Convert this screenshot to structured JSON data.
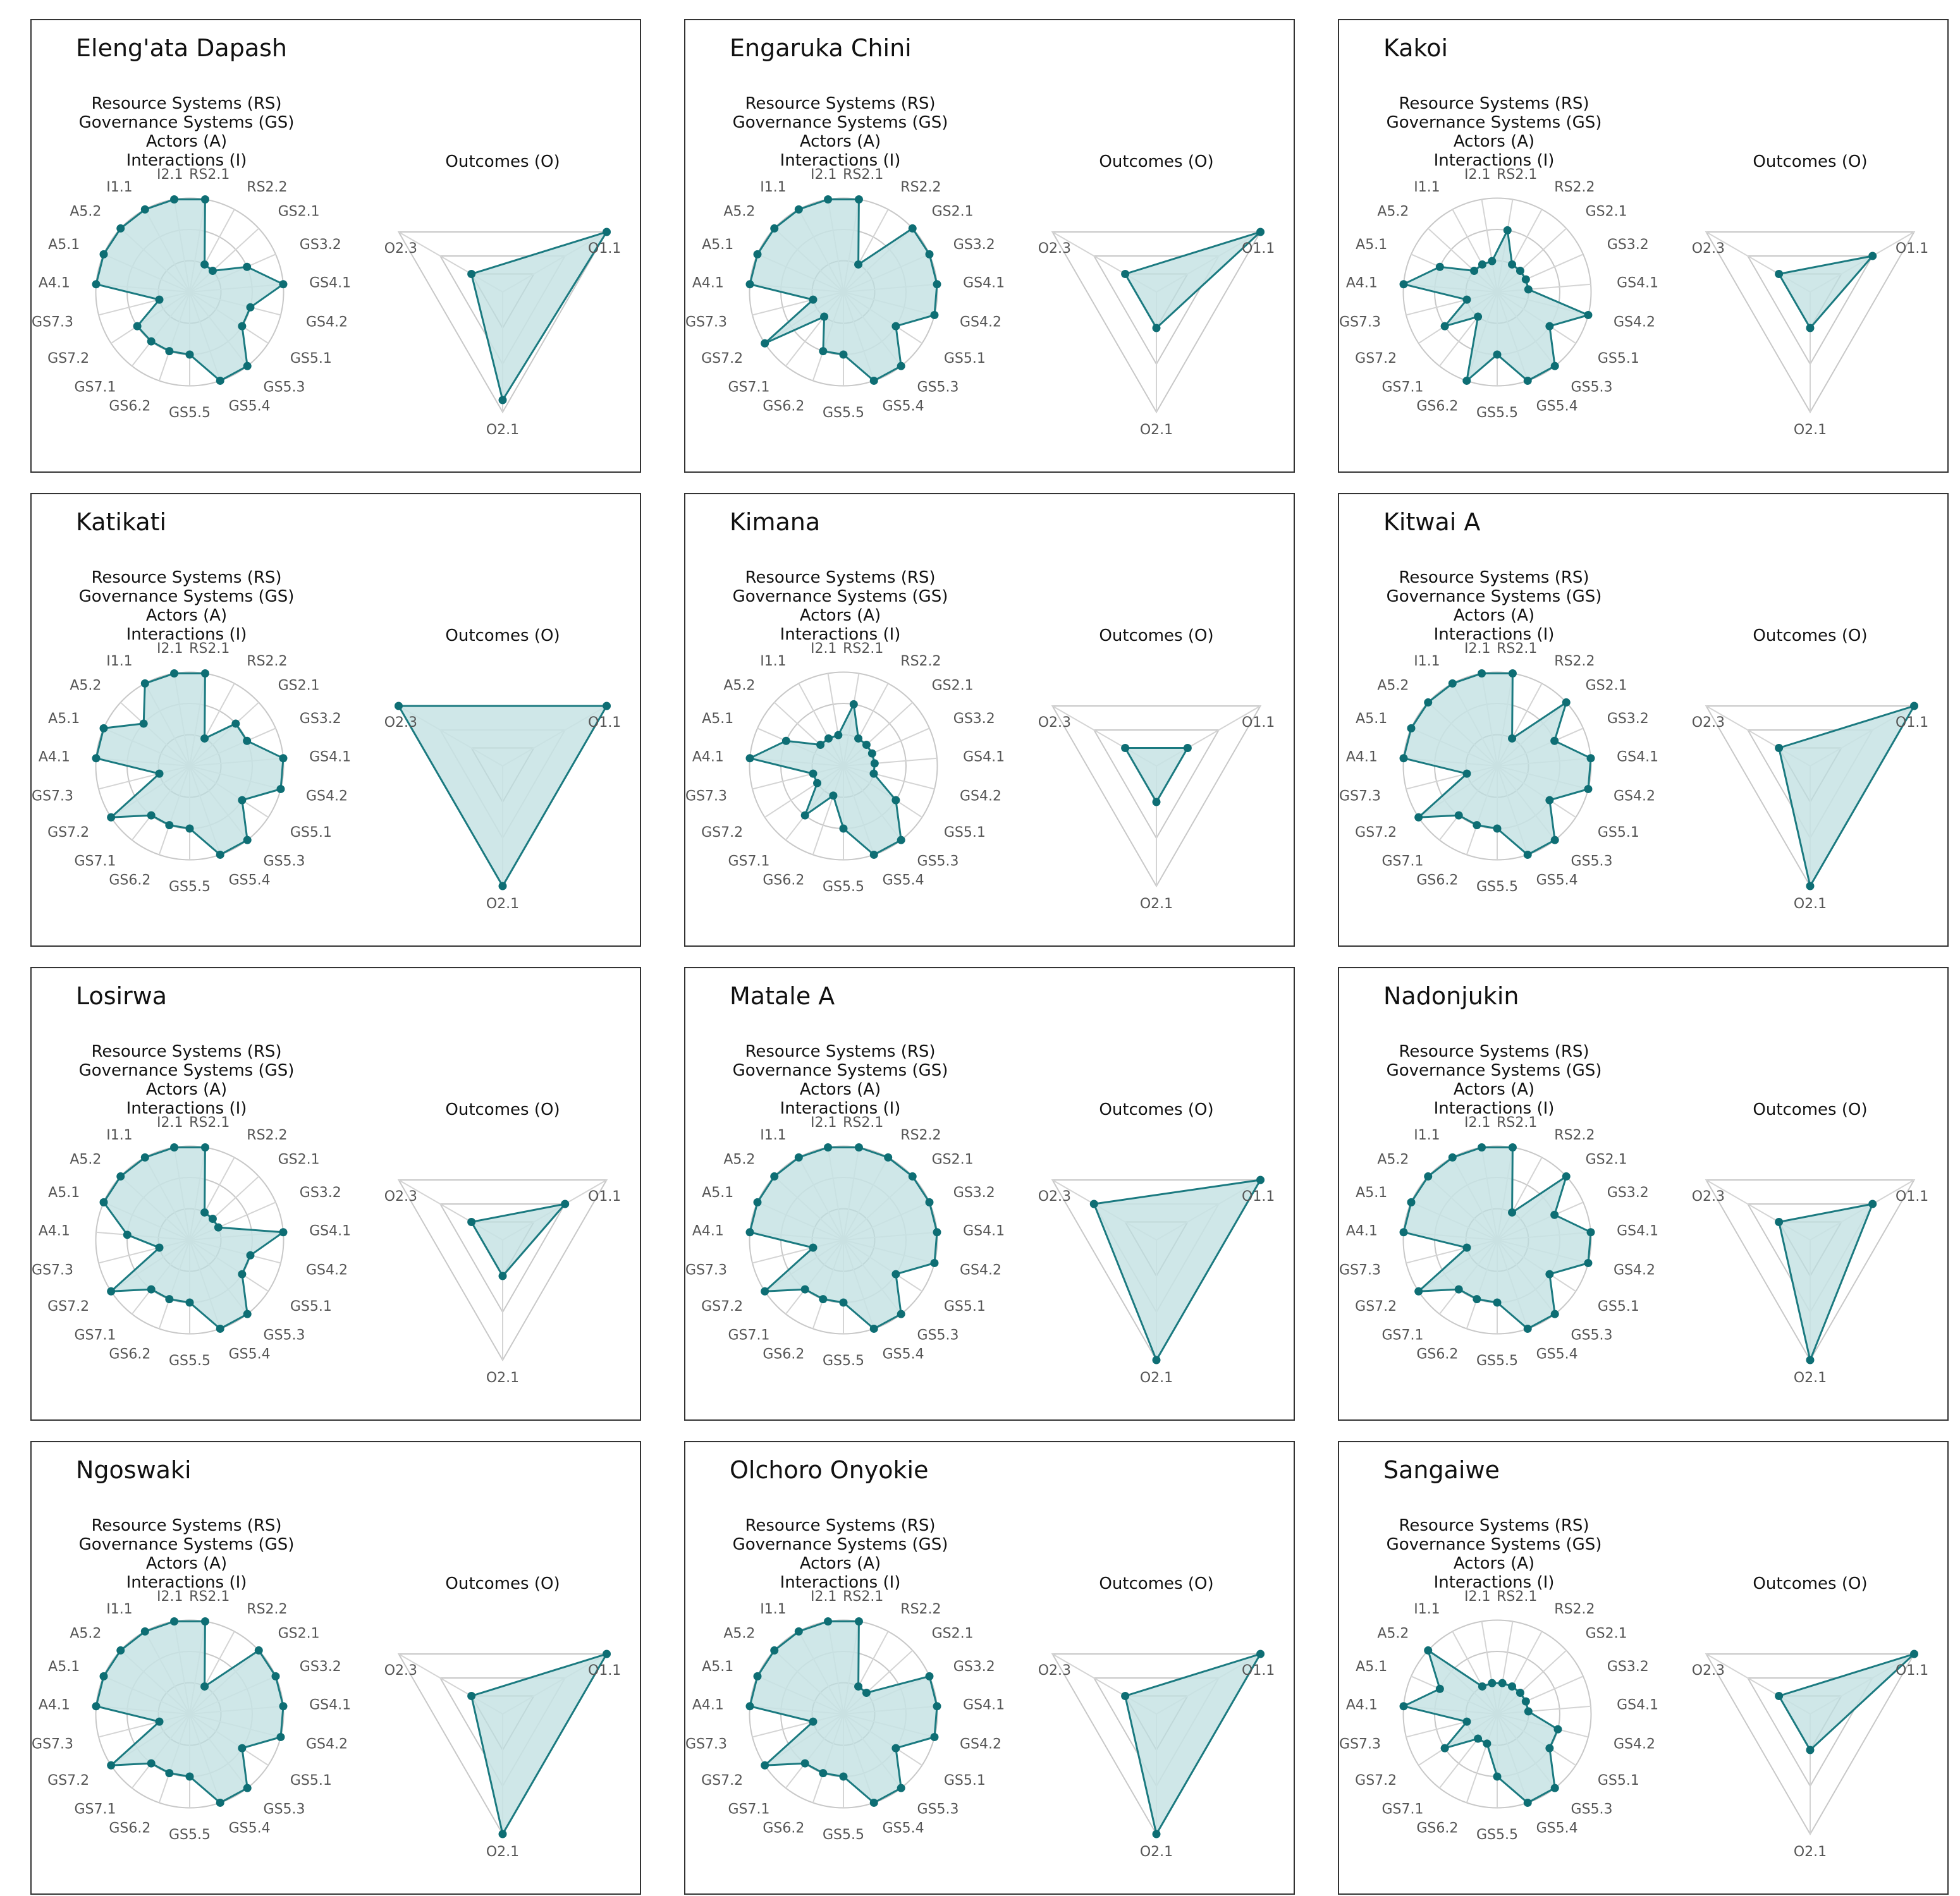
{
  "chart_data": {
    "type": "radar",
    "left_chart": {
      "heading_lines": [
        "Resource Systems (RS)",
        "Governance Systems (GS)",
        "Actors (A)",
        "Interactions (I)"
      ],
      "axes": [
        "RS2.1",
        "RS2.2",
        "GS2.1",
        "GS3.2",
        "GS4.1",
        "GS4.2",
        "GS5.1",
        "GS5.3",
        "GS5.4",
        "GS5.5",
        "GS6.2",
        "GS7.1",
        "GS7.2",
        "GS7.3",
        "A4.1",
        "A5.1",
        "A5.2",
        "I1.1",
        "I2.1"
      ],
      "range": [
        0,
        1
      ]
    },
    "right_chart": {
      "heading_lines": [
        "Outcomes (O)"
      ],
      "axes": [
        "O1.1",
        "O2.1",
        "O2.3"
      ],
      "range": [
        0,
        1
      ]
    },
    "panels": [
      {
        "title": "Eleng'ata Dapash",
        "left_values": [
          0.9,
          0.3,
          0.3,
          0.6,
          0.9,
          0.6,
          0.6,
          0.9,
          0.9,
          0.6,
          0.6,
          0.6,
          0.6,
          0.3,
          0.9,
          0.9,
          0.9,
          0.9,
          0.9
        ],
        "right_values": [
          1.0,
          0.9,
          0.3
        ]
      },
      {
        "title": "Engaruka Chini",
        "left_values": [
          0.9,
          0.3,
          0.9,
          0.9,
          0.9,
          0.9,
          0.6,
          0.9,
          0.9,
          0.6,
          0.6,
          0.3,
          0.9,
          0.3,
          0.9,
          0.9,
          0.9,
          0.9,
          0.9
        ],
        "right_values": [
          1.0,
          0.3,
          0.3
        ]
      },
      {
        "title": "Kakoi",
        "left_values": [
          0.6,
          0.3,
          0.3,
          0.3,
          0.3,
          0.9,
          0.6,
          0.9,
          0.9,
          0.6,
          0.9,
          0.3,
          0.6,
          0.3,
          0.9,
          0.6,
          0.3,
          0.3,
          0.3
        ],
        "right_values": [
          0.6,
          0.3,
          0.3
        ]
      },
      {
        "title": "Katikati",
        "left_values": [
          0.9,
          0.3,
          0.6,
          0.6,
          0.9,
          0.9,
          0.6,
          0.9,
          0.9,
          0.6,
          0.6,
          0.6,
          0.9,
          0.3,
          0.9,
          0.9,
          0.6,
          0.9,
          0.9
        ],
        "right_values": [
          1.0,
          1.0,
          1.0
        ]
      },
      {
        "title": "Kimana",
        "left_values": [
          0.6,
          0.3,
          0.3,
          0.3,
          0.3,
          0.3,
          0.6,
          0.9,
          0.9,
          0.6,
          0.3,
          0.6,
          0.3,
          0.3,
          0.9,
          0.6,
          0.3,
          0.3,
          0.3
        ],
        "right_values": [
          0.3,
          0.3,
          0.3
        ]
      },
      {
        "title": "Kitwai A",
        "left_values": [
          0.9,
          0.3,
          0.9,
          0.6,
          0.9,
          0.9,
          0.6,
          0.9,
          0.9,
          0.6,
          0.6,
          0.6,
          0.9,
          0.3,
          0.9,
          0.9,
          0.9,
          0.9,
          0.9
        ],
        "right_values": [
          1.0,
          1.0,
          0.3
        ]
      },
      {
        "title": "Losirwa",
        "left_values": [
          0.9,
          0.3,
          0.3,
          0.3,
          0.9,
          0.6,
          0.6,
          0.9,
          0.9,
          0.6,
          0.6,
          0.6,
          0.9,
          0.3,
          0.6,
          0.9,
          0.9,
          0.9,
          0.9
        ],
        "right_values": [
          0.6,
          0.3,
          0.3
        ]
      },
      {
        "title": "Matale A",
        "left_values": [
          0.9,
          0.9,
          0.9,
          0.9,
          0.9,
          0.9,
          0.6,
          0.9,
          0.9,
          0.6,
          0.6,
          0.6,
          0.9,
          0.3,
          0.9,
          0.9,
          0.9,
          0.9,
          0.9
        ],
        "right_values": [
          1.0,
          1.0,
          0.6
        ]
      },
      {
        "title": "Nadonjukin",
        "left_values": [
          0.9,
          0.3,
          0.9,
          0.6,
          0.9,
          0.9,
          0.6,
          0.9,
          0.9,
          0.6,
          0.6,
          0.6,
          0.9,
          0.3,
          0.9,
          0.9,
          0.9,
          0.9,
          0.9
        ],
        "right_values": [
          0.6,
          1.0,
          0.3
        ]
      },
      {
        "title": "Ngoswaki",
        "left_values": [
          0.9,
          0.3,
          0.9,
          0.9,
          0.9,
          0.9,
          0.6,
          0.9,
          0.9,
          0.6,
          0.6,
          0.6,
          0.9,
          0.3,
          0.9,
          0.9,
          0.9,
          0.9,
          0.9
        ],
        "right_values": [
          1.0,
          1.0,
          0.3
        ]
      },
      {
        "title": "Olchoro Onyokie",
        "left_values": [
          0.9,
          0.3,
          0.3,
          0.9,
          0.9,
          0.9,
          0.6,
          0.9,
          0.9,
          0.6,
          0.6,
          0.6,
          0.9,
          0.3,
          0.9,
          0.9,
          0.9,
          0.9,
          0.9
        ],
        "right_values": [
          1.0,
          1.0,
          0.3
        ]
      },
      {
        "title": "Sangaiwe",
        "left_values": [
          0.3,
          0.3,
          0.3,
          0.3,
          0.3,
          0.6,
          0.6,
          0.9,
          0.9,
          0.6,
          0.3,
          0.3,
          0.6,
          0.3,
          0.9,
          0.6,
          0.9,
          0.3,
          0.3
        ],
        "right_values": [
          1.0,
          0.3,
          0.3
        ]
      }
    ]
  }
}
